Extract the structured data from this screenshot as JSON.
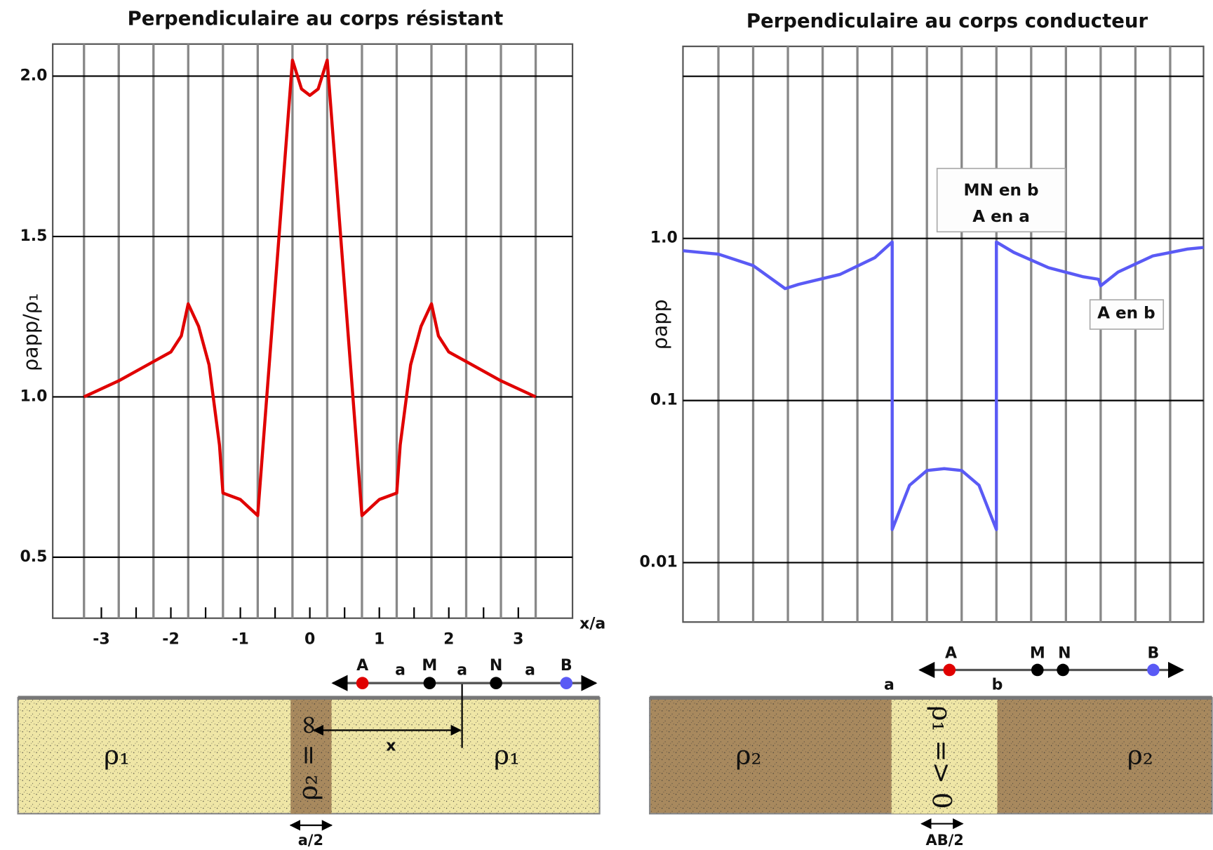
{
  "chart_data": [
    {
      "type": "line",
      "title": "Perpendiculaire au corps résistant",
      "xlabel": "x/a",
      "ylabel": "ρapp/ρ₁",
      "xlim": [
        -3.7,
        3.78
      ],
      "ylim": [
        0.31,
        2.1
      ],
      "xticks": [
        -3,
        -2,
        -1,
        0,
        1,
        2,
        3
      ],
      "xminorticks": [
        -2.5,
        -1.5,
        -0.5,
        0.5,
        1.5,
        2.5
      ],
      "xgrid": [
        -3.25,
        -2.75,
        -2.25,
        -1.75,
        -1.25,
        -0.75,
        -0.25,
        0.25,
        0.75,
        1.25,
        1.75,
        2.25,
        2.75,
        3.25
      ],
      "yticks": [
        0.5,
        {
          "value": 1,
          "label": "1.0"
        },
        1.5,
        {
          "value": 2,
          "label": "2.0"
        }
      ],
      "x": [
        -3.25,
        -2.75,
        -2.25,
        -2.0,
        -1.85,
        -1.75,
        -1.6,
        -1.45,
        -1.3,
        -1.25,
        -1.0,
        -0.75,
        -0.25,
        -0.12,
        0,
        0.12,
        0.25,
        0.75,
        1.0,
        1.25,
        1.3,
        1.45,
        1.6,
        1.75,
        1.85,
        2.0,
        2.25,
        2.75,
        3.25
      ],
      "series": [
        {
          "color": "#e00000",
          "values": [
            1.0,
            1.05,
            1.11,
            1.14,
            1.19,
            1.29,
            1.22,
            1.1,
            0.85,
            0.7,
            0.68,
            0.63,
            2.05,
            1.96,
            1.94,
            1.96,
            2.05,
            0.63,
            0.68,
            0.7,
            0.85,
            1.1,
            1.22,
            1.29,
            1.19,
            1.14,
            1.11,
            1.05,
            1.0
          ]
        }
      ]
    },
    {
      "type": "line",
      "title": "Perpendiculaire au corps conducteur",
      "ylabel": "ρapp",
      "yscale": "log",
      "xlim": [
        -3.76,
        3.73
      ],
      "ylim": [
        0.0043,
        15.3
      ],
      "xgrid": [
        -3.25,
        -2.75,
        -2.25,
        -1.75,
        -1.25,
        -0.75,
        -0.25,
        0.25,
        0.75,
        1.25,
        1.75,
        2.25,
        2.75,
        3.25
      ],
      "yticks": [
        0.01,
        0.1,
        {
          "value": 1,
          "label": "1.0"
        }
      ],
      "ygrid": [
        0.01,
        0.1,
        1,
        10
      ],
      "annotations": [
        "MN en b",
        "A en a",
        "A en b"
      ],
      "x": [
        -3.76,
        -3.25,
        -2.75,
        -2.29,
        -2.1,
        -1.5,
        -1.0,
        -0.75,
        -0.75,
        -0.5,
        -0.25,
        0,
        0.25,
        0.5,
        0.75,
        0.75,
        1.0,
        1.5,
        2.0,
        2.22,
        2.25,
        2.5,
        3.0,
        3.5,
        3.73
      ],
      "series": [
        {
          "color": "#5a5af5",
          "values": [
            0.84,
            0.8,
            0.68,
            0.49,
            0.52,
            0.6,
            0.76,
            0.95,
            0.016,
            0.03,
            0.037,
            0.038,
            0.037,
            0.03,
            0.016,
            0.95,
            0.82,
            0.66,
            0.58,
            0.56,
            0.51,
            0.62,
            0.78,
            0.86,
            0.88
          ]
        }
      ]
    }
  ],
  "diagrams": [
    {
      "rho_left": "ρ₁",
      "rho_body": "ρ₂ = ∞",
      "rho_right": "ρ₁",
      "distance": "x",
      "width": "a/2",
      "electrodes": [
        "A",
        "M",
        "N",
        "B"
      ],
      "spacings": [
        "a",
        "a",
        "a"
      ]
    },
    {
      "rho_left": "ρ₂",
      "rho_body": "ρ₁ => 0",
      "rho_right": "ρ₂",
      "edges": [
        "a",
        "b"
      ],
      "width": "AB/2",
      "electrodes": [
        "A",
        "M",
        "N",
        "B"
      ]
    }
  ]
}
